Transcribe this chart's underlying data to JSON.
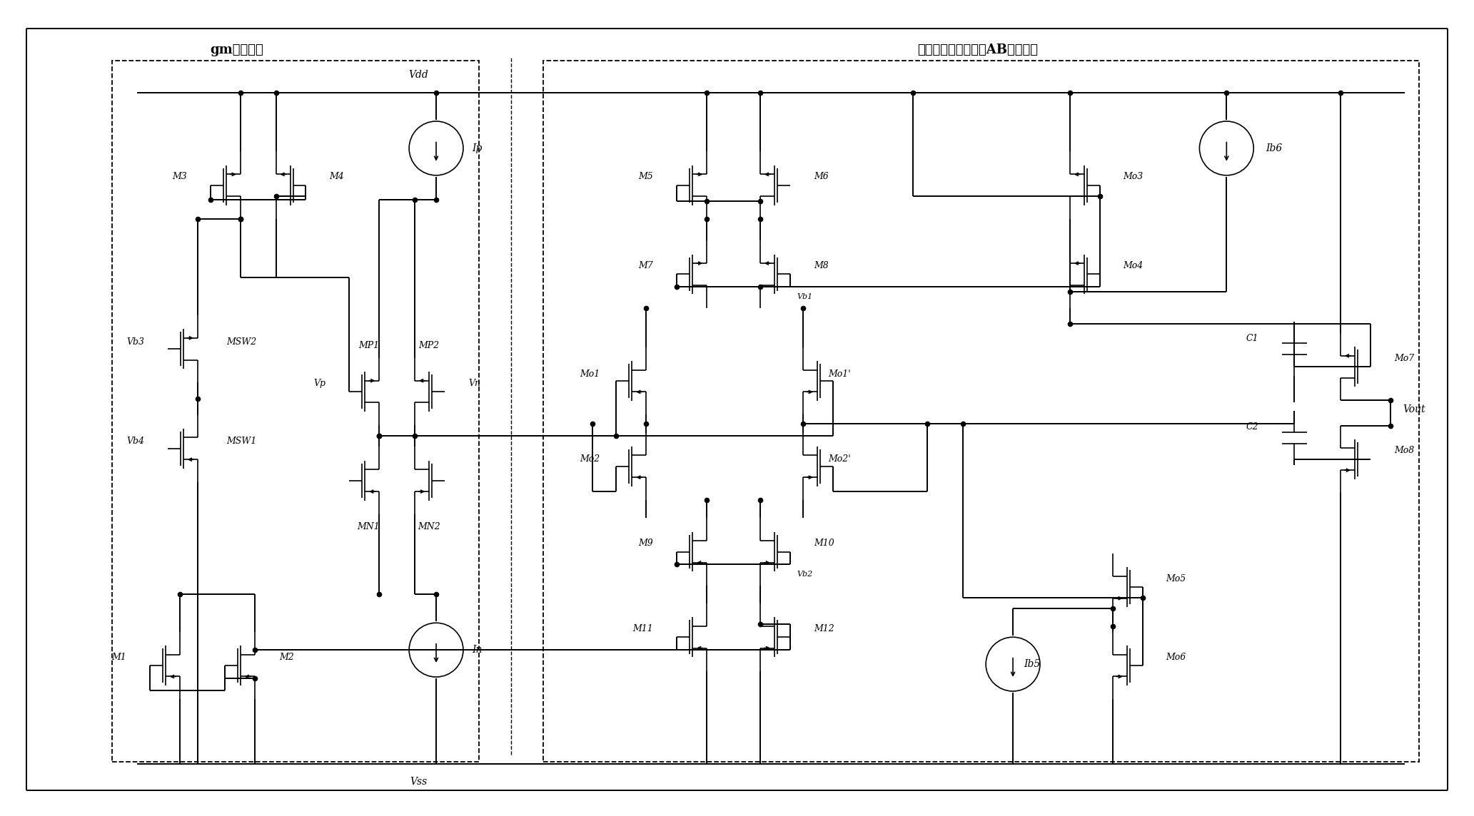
{
  "bg_color": "#ffffff",
  "line_color": "#000000",
  "box_left_label": "gm控制电路",
  "box_right_label": "与有源负载相结合的AB类输出级",
  "vdd_label": "Vdd",
  "vss_label": "Vss",
  "ip_label": "Ip",
  "in_label": "In",
  "ib5_label": "Ib5",
  "ib6_label": "Ib6",
  "vout_label": "Vout",
  "c1_label": "C1",
  "c2_label": "C2"
}
